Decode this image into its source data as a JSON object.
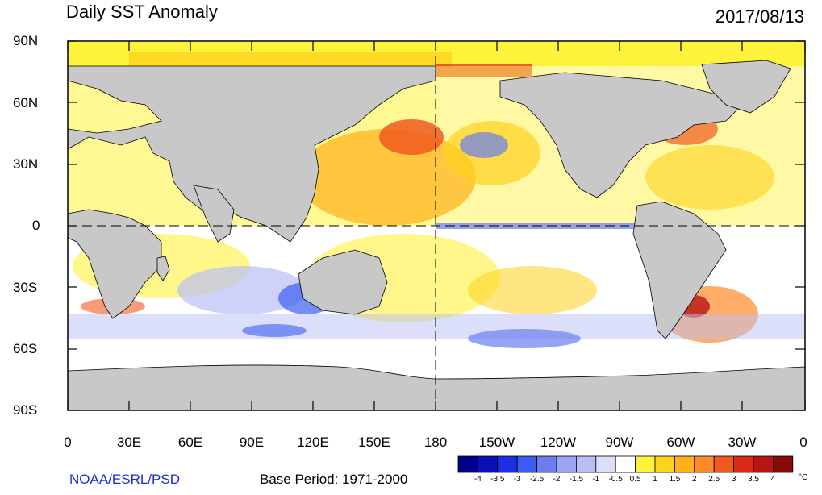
{
  "title": "Daily SST Anomaly",
  "date": "2017/08/13",
  "credit": "NOAA/ESRL/PSD",
  "base_period": "Base Period: 1971-2000",
  "lat_labels": [
    "90N",
    "60N",
    "30N",
    "0",
    "30S",
    "60S",
    "90S"
  ],
  "lon_labels": [
    "0",
    "30E",
    "60E",
    "90E",
    "120E",
    "150E",
    "180",
    "150W",
    "120W",
    "90W",
    "60W",
    "30W",
    "0"
  ],
  "colorbar": {
    "unit": "°C",
    "labels": [
      "-4",
      "-3.5",
      "-3",
      "-2.5",
      "-2",
      "-1.5",
      "-1",
      "-0.5",
      "0.5",
      "1",
      "1.5",
      "2",
      "2.5",
      "3",
      "3.5",
      "4"
    ],
    "colors": [
      "#00008b",
      "#0a10b8",
      "#1c2ee6",
      "#3c5cf2",
      "#6a7ef0",
      "#9aa4f0",
      "#b9bff5",
      "#dcdffa",
      "#ffffff",
      "#fff23a",
      "#ffd21e",
      "#ffb01a",
      "#ff8a2a",
      "#f05a1e",
      "#dc2a18",
      "#b81414",
      "#8a0a0a"
    ]
  },
  "colors": {
    "land": "#c8c8c8",
    "ocean_neutral": "#ffffff",
    "credit": "#1a2bd6"
  }
}
